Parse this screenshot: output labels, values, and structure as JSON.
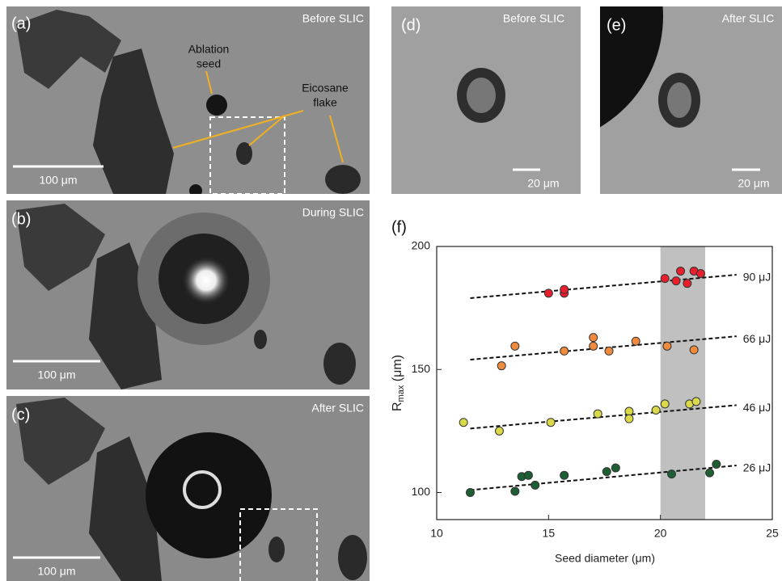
{
  "panels": [
    {
      "label": "(a)",
      "caption": "Before SLIC",
      "scale_bar": "100 μm",
      "annotations": [
        "Ablation",
        "seed",
        "Eicosane",
        "flake"
      ]
    },
    {
      "label": "(b)",
      "caption": "During SLIC",
      "scale_bar": "100 μm"
    },
    {
      "label": "(c)",
      "caption": "After SLIC",
      "scale_bar": "100 μm"
    },
    {
      "label": "(d)",
      "caption": "Before SLIC",
      "scale_bar": "20 μm"
    },
    {
      "label": "(e)",
      "caption": "After SLIC",
      "scale_bar": "20 μm"
    }
  ],
  "chart_data": {
    "type": "scatter",
    "panel_label": "(f)",
    "xlabel": "Seed diameter (μm)",
    "ylabel_symbol": "R",
    "ylabel_subscript": "max",
    "ylabel_unit": " (μm)",
    "xlim": [
      10,
      25
    ],
    "ylim": [
      89,
      200
    ],
    "xticks": [
      10,
      15,
      20,
      25
    ],
    "yticks": [
      100,
      150,
      200
    ],
    "highlight_x": [
      20,
      22
    ],
    "highlight_color": "#c0c0c0",
    "fit_x": [
      11.5,
      23.4
    ],
    "series": [
      {
        "name": "90 μJ",
        "color": "#e8202e",
        "x": [
          15.0,
          15.7,
          15.7,
          20.2,
          20.7,
          20.9,
          21.2,
          21.5,
          21.8
        ],
        "values": [
          181,
          181,
          182.5,
          187,
          186,
          190,
          185,
          190,
          189
        ],
        "fit": [
          179,
          188.5
        ]
      },
      {
        "name": "66 μJ",
        "color": "#f08a3c",
        "x": [
          12.9,
          13.5,
          15.7,
          17.0,
          17.0,
          17.7,
          18.9,
          20.3,
          21.5
        ],
        "values": [
          151.5,
          159.5,
          157.5,
          163,
          159.5,
          157.5,
          161.5,
          159.5,
          158
        ],
        "fit": [
          154,
          163.5
        ]
      },
      {
        "name": "46 μJ",
        "color": "#d9d94a",
        "x": [
          11.2,
          12.8,
          15.1,
          17.2,
          18.6,
          18.6,
          19.8,
          20.2,
          21.3,
          21.6
        ],
        "values": [
          128.5,
          125,
          128.5,
          132,
          133,
          130,
          133.5,
          136,
          136,
          137
        ],
        "fit": [
          126,
          135.5
        ]
      },
      {
        "name": "26 μJ",
        "color": "#1e5e34",
        "x": [
          11.5,
          13.5,
          13.8,
          14.1,
          14.4,
          15.7,
          17.6,
          18.0,
          20.5,
          22.2,
          22.5
        ],
        "values": [
          100,
          100.5,
          106.5,
          107,
          103,
          107,
          108.5,
          110,
          107.5,
          108,
          111.5
        ],
        "fit": [
          101,
          111
        ]
      }
    ]
  }
}
